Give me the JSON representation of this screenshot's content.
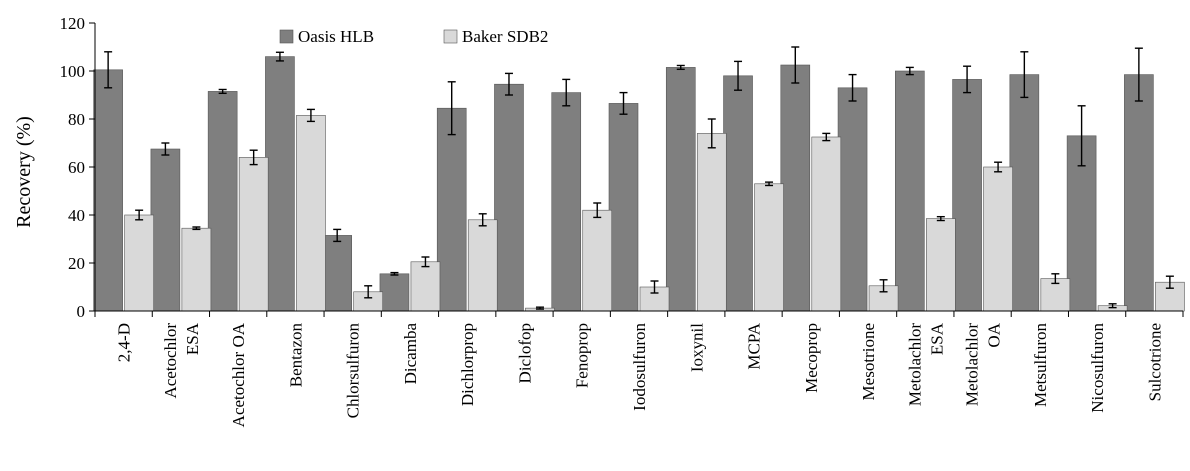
{
  "chart_data": {
    "type": "bar",
    "title": "",
    "xlabel": "",
    "ylabel": "Recovery (%)",
    "ylim": [
      0,
      120
    ],
    "yticks": [
      0,
      20,
      40,
      60,
      80,
      100,
      120
    ],
    "grid": false,
    "legend_position": "top",
    "categories": [
      [
        "2,4-D"
      ],
      [
        "Acetochlor",
        "ESA"
      ],
      [
        "Acetochlor OA"
      ],
      [
        "Bentazon"
      ],
      [
        "Chlorsulfuron"
      ],
      [
        "Dicamba"
      ],
      [
        "Dichlorprop"
      ],
      [
        "Diclofop"
      ],
      [
        "Fenoprop"
      ],
      [
        "Iodosulfuron"
      ],
      [
        "Ioxynil"
      ],
      [
        "MCPA"
      ],
      [
        "Mecoprop"
      ],
      [
        "Mesotrione"
      ],
      [
        "Metolachlor",
        "ESA"
      ],
      [
        "Metolachlor",
        "OA"
      ],
      [
        "Metsulfuron"
      ],
      [
        "Nicosulfuron"
      ],
      [
        "Sulcotrione"
      ]
    ],
    "series": [
      {
        "name": "Oasis HLB",
        "color": "#7f7f7f",
        "values": [
          100.5,
          67.5,
          91.5,
          106,
          31.5,
          15.5,
          84.5,
          94.5,
          91,
          86.5,
          101.5,
          98,
          102.5,
          93,
          100,
          96.5,
          98.5,
          73,
          98.5
        ],
        "errors": [
          7.5,
          2.5,
          0.8,
          1.8,
          2.5,
          0.5,
          11,
          4.5,
          5.5,
          4.5,
          0.8,
          6,
          7.5,
          5.5,
          1.5,
          5.5,
          9.5,
          12.5,
          11
        ]
      },
      {
        "name": "Baker SDB2",
        "color": "#d9d9d9",
        "values": [
          40,
          34.5,
          64,
          81.5,
          8,
          20.5,
          38,
          1.2,
          42,
          10,
          74,
          53,
          72.5,
          10.5,
          38.5,
          60,
          13.5,
          2.2,
          12
        ],
        "errors": [
          2,
          0.5,
          3,
          2.5,
          2.5,
          2,
          2.5,
          0.4,
          3,
          2.5,
          6,
          0.7,
          1.5,
          2.5,
          0.8,
          2,
          2,
          0.8,
          2.5
        ]
      }
    ]
  }
}
